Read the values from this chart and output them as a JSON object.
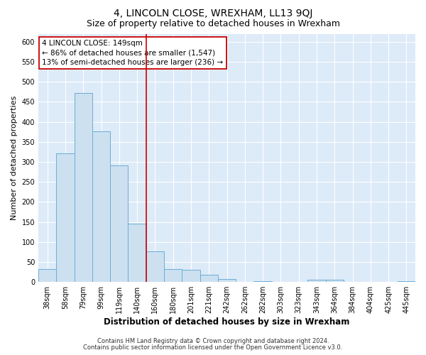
{
  "title": "4, LINCOLN CLOSE, WREXHAM, LL13 9QJ",
  "subtitle": "Size of property relative to detached houses in Wrexham",
  "xlabel": "Distribution of detached houses by size in Wrexham",
  "ylabel": "Number of detached properties",
  "bar_labels": [
    "38sqm",
    "58sqm",
    "79sqm",
    "99sqm",
    "119sqm",
    "140sqm",
    "160sqm",
    "180sqm",
    "201sqm",
    "221sqm",
    "242sqm",
    "262sqm",
    "282sqm",
    "303sqm",
    "323sqm",
    "343sqm",
    "364sqm",
    "384sqm",
    "404sqm",
    "425sqm",
    "445sqm"
  ],
  "bar_values": [
    32,
    322,
    472,
    376,
    291,
    145,
    76,
    33,
    30,
    18,
    8,
    1,
    3,
    0,
    1,
    5,
    5,
    1,
    0,
    0,
    2
  ],
  "bar_color": "#cce0f0",
  "bar_edge_color": "#6aaed6",
  "vline_color": "#cc0000",
  "annotation_title": "4 LINCOLN CLOSE: 149sqm",
  "annotation_line1": "← 86% of detached houses are smaller (1,547)",
  "annotation_line2": "13% of semi-detached houses are larger (236) →",
  "annotation_box_facecolor": "#ffffff",
  "annotation_box_edgecolor": "#cc0000",
  "ylim": [
    0,
    620
  ],
  "yticks": [
    0,
    50,
    100,
    150,
    200,
    250,
    300,
    350,
    400,
    450,
    500,
    550,
    600
  ],
  "footer1": "Contains HM Land Registry data © Crown copyright and database right 2024.",
  "footer2": "Contains public sector information licensed under the Open Government Licence v3.0.",
  "fig_bg_color": "#ffffff",
  "plot_bg_color": "#ddeaf8",
  "grid_color": "#ffffff",
  "title_fontsize": 10,
  "subtitle_fontsize": 9,
  "ylabel_fontsize": 8,
  "xlabel_fontsize": 8.5,
  "tick_fontsize": 7,
  "annotation_fontsize": 7.5,
  "footer_fontsize": 6
}
